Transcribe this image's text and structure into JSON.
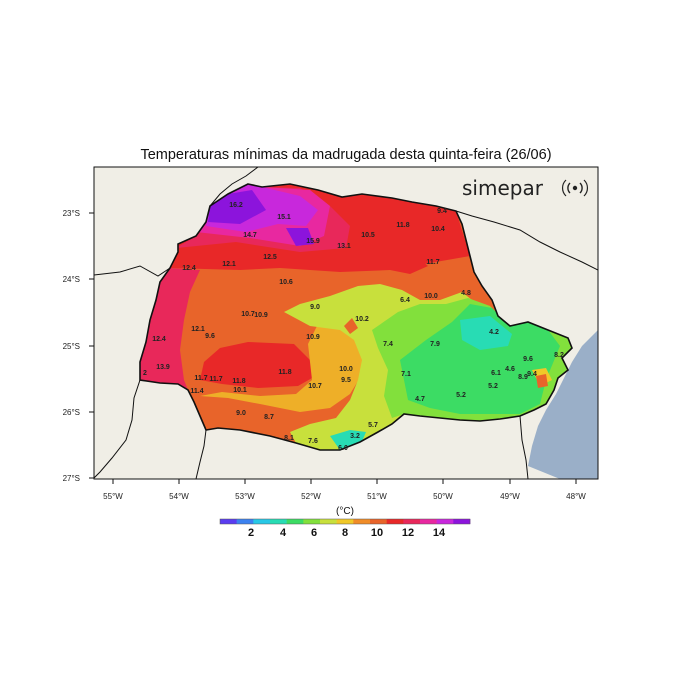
{
  "title": "Temperaturas mínimas da madrugada desta quinta-feira (26/06)",
  "brand": {
    "name": "simepar",
    "icon": "radar-signal-icon"
  },
  "axes": {
    "lon_ticks": [
      "55°W",
      "54°W",
      "53°W",
      "52°W",
      "51°W",
      "50°W",
      "49°W",
      "48°W"
    ],
    "lat_ticks": [
      "23°S",
      "24°S",
      "25°S",
      "26°S",
      "27°S"
    ]
  },
  "colorbar": {
    "unit": "(°C)",
    "ticks": [
      "2",
      "4",
      "6",
      "8",
      "10",
      "12",
      "14"
    ],
    "colors": [
      "#5a3cf0",
      "#3c82f0",
      "#28c8e6",
      "#28dcb4",
      "#3cdc64",
      "#82e03c",
      "#c8e03c",
      "#f0c828",
      "#f08c28",
      "#e8642a",
      "#e82828",
      "#e8285a",
      "#e828a0",
      "#c828dc",
      "#8c14dc"
    ]
  },
  "colors": {
    "ocean": "#9aafc8",
    "land": "#f0eee6",
    "border": "#111111"
  },
  "station_values": [
    "16.2",
    "15.1",
    "14.7",
    "15.9",
    "13.1",
    "10.5",
    "11.8",
    "9.4",
    "10.4",
    "12.4",
    "12.1",
    "12.5",
    "11.7",
    "10.6",
    "9.0",
    "6.4",
    "10.0",
    "4.8",
    "10.7",
    "10.9",
    "10.2",
    "4.2",
    "12.1",
    "9.6",
    "10.9",
    "7.4",
    "7.9",
    "12.4",
    "13.9",
    "2",
    "10.0",
    "9.5",
    "7.1",
    "9.6",
    "8.2",
    "6.1",
    "4.6",
    "8.9",
    "9.4",
    "11.7",
    "11.7",
    "11.8",
    "11.8",
    "10.7",
    "5.2",
    "11.4",
    "10.1",
    "4.7",
    "5.2",
    "9.0",
    "8.7",
    "5.7",
    "8.1",
    "7.6",
    "3.2",
    "6.0"
  ]
}
